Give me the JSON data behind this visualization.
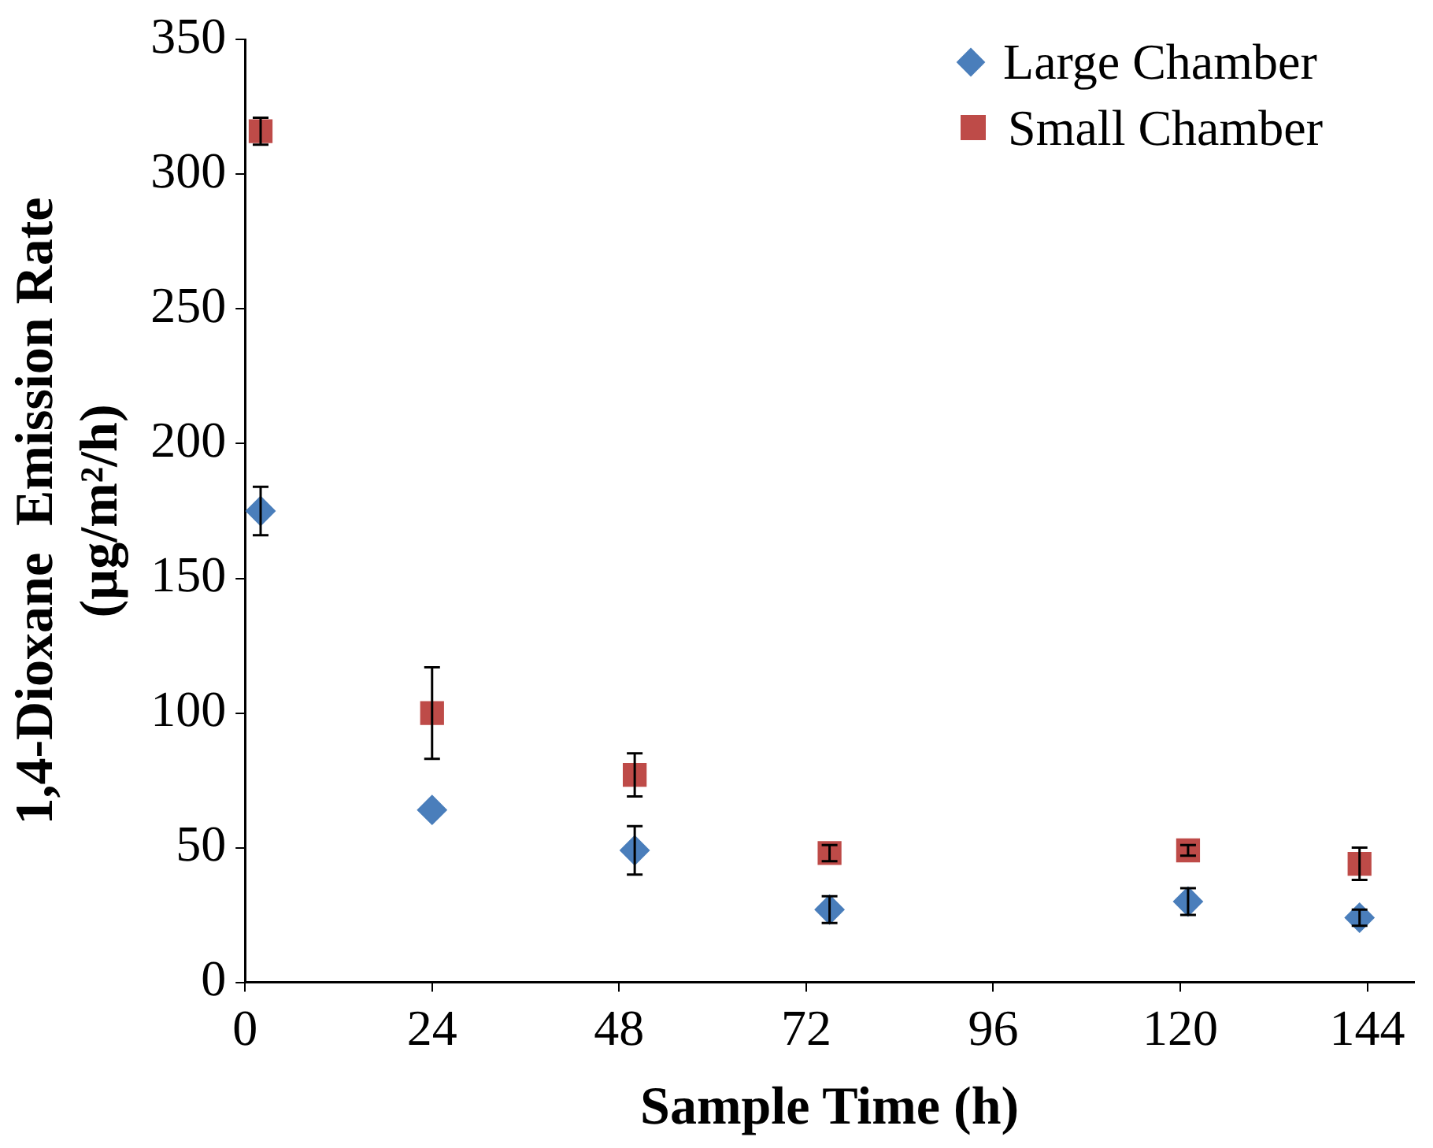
{
  "chart_data": {
    "type": "scatter",
    "xlabel": "Sample Time (h)",
    "ylabel": "1,4-Dioxane  Emission Rate\n(µg/m²/h)",
    "xlim": [
      0,
      150
    ],
    "xticks": [
      0,
      24,
      48,
      72,
      96,
      120,
      144
    ],
    "ylim": [
      0,
      350
    ],
    "yticks": [
      0,
      50,
      100,
      150,
      200,
      250,
      300,
      350
    ],
    "grid": false,
    "legend": "top right",
    "series": [
      {
        "name": "Large Chamber",
        "color": "#4a7ebb",
        "marker": "diamond",
        "x": [
          2,
          24,
          50,
          75,
          121,
          143
        ],
        "values": [
          175,
          64,
          49,
          27,
          30,
          24
        ],
        "errors": [
          9,
          null,
          9,
          5,
          5,
          3
        ]
      },
      {
        "name": "Small Chamber",
        "color": "#be4b48",
        "marker": "square",
        "x": [
          2,
          24,
          50,
          75,
          121,
          143
        ],
        "values": [
          316,
          100,
          77,
          48,
          49,
          44
        ],
        "errors": [
          5,
          17,
          8,
          3,
          2,
          6
        ]
      }
    ]
  }
}
